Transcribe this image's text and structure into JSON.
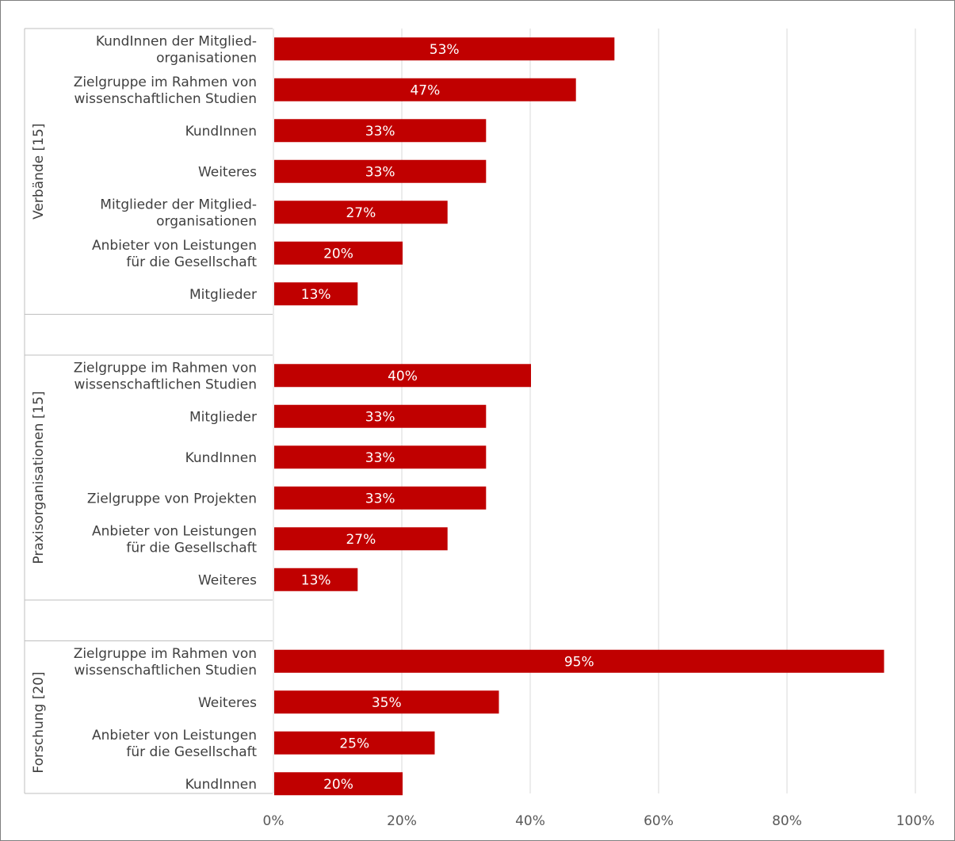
{
  "chart_data": {
    "type": "bar",
    "orientation": "horizontal",
    "title": "",
    "xlabel": "",
    "ylabel": "",
    "xlim": [
      0,
      100
    ],
    "x_ticks": [
      "0%",
      "20%",
      "40%",
      "60%",
      "80%",
      "100%"
    ],
    "grid": true,
    "bar_color": "#C00000",
    "groups": [
      {
        "name": "Verbände [15]",
        "bars": [
          {
            "label": [
              "KundInnen der Mitglied-",
              "organisationen"
            ],
            "value": 53,
            "value_label": "53%"
          },
          {
            "label": [
              "Zielgruppe im Rahmen von",
              "wissenschaftlichen Studien"
            ],
            "value": 47,
            "value_label": "47%"
          },
          {
            "label": [
              "KundInnen"
            ],
            "value": 33,
            "value_label": "33%"
          },
          {
            "label": [
              "Weiteres"
            ],
            "value": 33,
            "value_label": "33%"
          },
          {
            "label": [
              "Mitglieder der Mitglied-",
              "organisationen"
            ],
            "value": 27,
            "value_label": "27%"
          },
          {
            "label": [
              "Anbieter von Leistungen",
              "für die Gesellschaft"
            ],
            "value": 20,
            "value_label": "20%"
          },
          {
            "label": [
              "Mitglieder"
            ],
            "value": 13,
            "value_label": "13%"
          }
        ]
      },
      {
        "name": "Praxisorganisationen [15]",
        "bars": [
          {
            "label": [
              "Zielgruppe im Rahmen von",
              "wissenschaftlichen Studien"
            ],
            "value": 40,
            "value_label": "40%"
          },
          {
            "label": [
              "Mitglieder"
            ],
            "value": 33,
            "value_label": "33%"
          },
          {
            "label": [
              "KundInnen"
            ],
            "value": 33,
            "value_label": "33%"
          },
          {
            "label": [
              "Zielgruppe von Projekten"
            ],
            "value": 33,
            "value_label": "33%"
          },
          {
            "label": [
              "Anbieter von Leistungen",
              "für die Gesellschaft"
            ],
            "value": 27,
            "value_label": "27%"
          },
          {
            "label": [
              "Weiteres"
            ],
            "value": 13,
            "value_label": "13%"
          }
        ]
      },
      {
        "name": "Forschung [20]",
        "bars": [
          {
            "label": [
              "Zielgruppe im Rahmen von",
              "wissenschaftlichen Studien"
            ],
            "value": 95,
            "value_label": "95%"
          },
          {
            "label": [
              "Weiteres"
            ],
            "value": 35,
            "value_label": "35%"
          },
          {
            "label": [
              "Anbieter von Leistungen",
              "für die Gesellschaft"
            ],
            "value": 25,
            "value_label": "25%"
          },
          {
            "label": [
              "KundInnen"
            ],
            "value": 20,
            "value_label": "20%"
          }
        ]
      }
    ]
  },
  "colors": {
    "bar": "#C00000",
    "grid": "#d9d9d9",
    "separator": "#bfbfbf",
    "text": "#404040",
    "border": "#7f7f7f"
  }
}
